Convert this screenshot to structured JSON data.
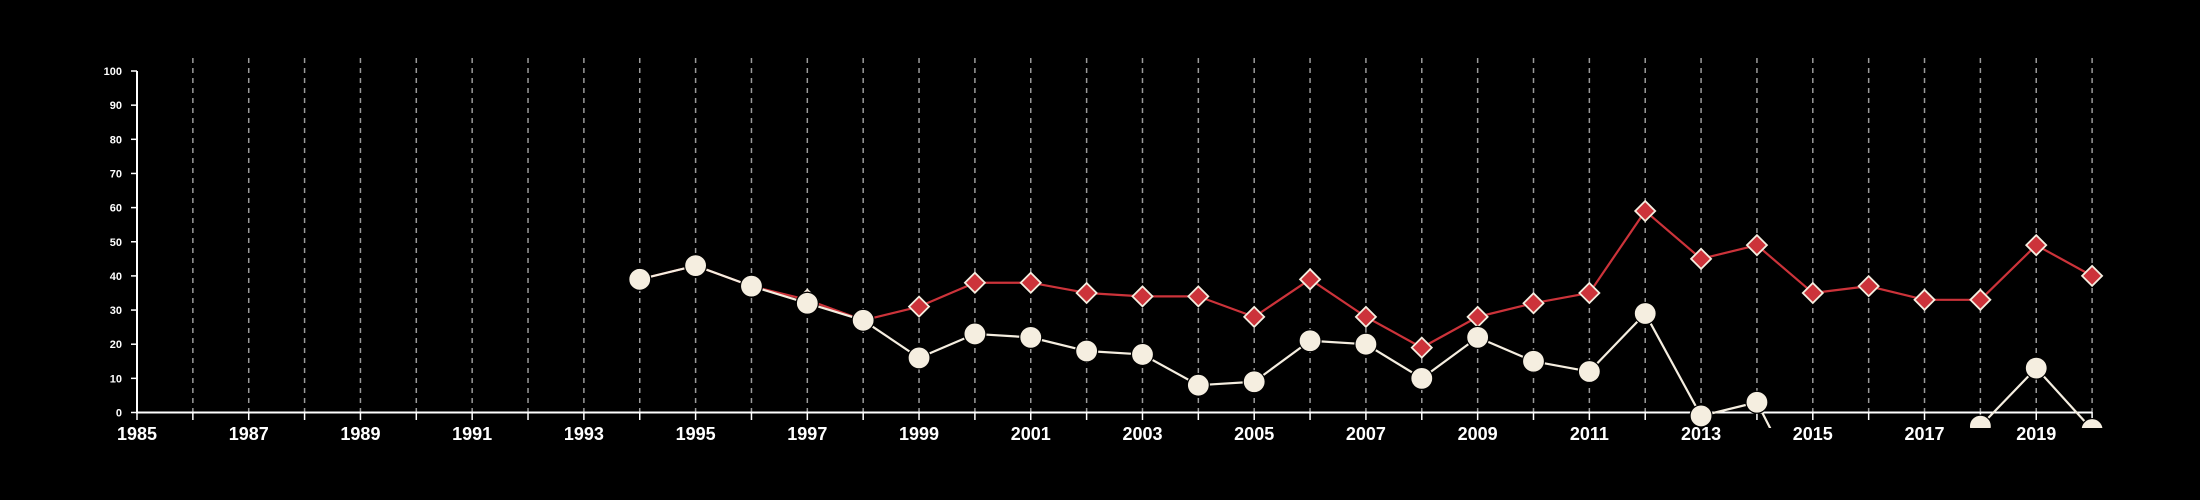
{
  "chart_data": {
    "type": "line",
    "x_range": [
      1985,
      2020
    ],
    "x_tick_labels": [
      "1985",
      "1987",
      "1989",
      "1991",
      "1993",
      "1995",
      "1997",
      "1999",
      "2001",
      "2003",
      "2005",
      "2007",
      "2009",
      "2011",
      "2013",
      "2015",
      "2017",
      "2019"
    ],
    "ylim": [
      0,
      100
    ],
    "y_tick_labels": [
      "0",
      "10",
      "20",
      "30",
      "40",
      "50",
      "60",
      "70",
      "80",
      "90",
      "100"
    ],
    "grid": "vertical dashed lines at every year",
    "legend": "none",
    "series": [
      {
        "color": "#cc333a",
        "marker": "diamond",
        "points": [
          {
            "x": 1994,
            "y": 39
          },
          {
            "x": 1995,
            "y": 43
          },
          {
            "x": 1996,
            "y": 37
          },
          {
            "x": 1997,
            "y": 33
          },
          {
            "x": 1998,
            "y": 27
          },
          {
            "x": 1999,
            "y": 31
          },
          {
            "x": 2000,
            "y": 38
          },
          {
            "x": 2001,
            "y": 38
          },
          {
            "x": 2002,
            "y": 35
          },
          {
            "x": 2003,
            "y": 34
          },
          {
            "x": 2004,
            "y": 34
          },
          {
            "x": 2005,
            "y": 28
          },
          {
            "x": 2006,
            "y": 39
          },
          {
            "x": 2007,
            "y": 28
          },
          {
            "x": 2008,
            "y": 19
          },
          {
            "x": 2009,
            "y": 28
          },
          {
            "x": 2010,
            "y": 32
          },
          {
            "x": 2011,
            "y": 35
          },
          {
            "x": 2012,
            "y": 59
          },
          {
            "x": 2013,
            "y": 45
          },
          {
            "x": 2014,
            "y": 49
          },
          {
            "x": 2015,
            "y": 35
          },
          {
            "x": 2016,
            "y": 37
          },
          {
            "x": 2017,
            "y": 33
          },
          {
            "x": 2018,
            "y": 33
          },
          {
            "x": 2019,
            "y": 49
          },
          {
            "x": 2020,
            "y": 40
          }
        ]
      },
      {
        "color": "#f5eee0",
        "marker": "circle",
        "points": [
          {
            "x": 1994,
            "y": 39
          },
          {
            "x": 1995,
            "y": 43
          },
          {
            "x": 1996,
            "y": 37
          },
          {
            "x": 1997,
            "y": 32
          },
          {
            "x": 1998,
            "y": 27
          },
          {
            "x": 1999,
            "y": 16
          },
          {
            "x": 2000,
            "y": 23
          },
          {
            "x": 2001,
            "y": 22
          },
          {
            "x": 2002,
            "y": 18
          },
          {
            "x": 2003,
            "y": 17
          },
          {
            "x": 2004,
            "y": 8
          },
          {
            "x": 2005,
            "y": 9
          },
          {
            "x": 2006,
            "y": 21
          },
          {
            "x": 2007,
            "y": 20
          },
          {
            "x": 2008,
            "y": 10
          },
          {
            "x": 2009,
            "y": 22
          },
          {
            "x": 2010,
            "y": 15
          },
          {
            "x": 2011,
            "y": 12
          },
          {
            "x": 2012,
            "y": 29
          },
          {
            "x": 2013,
            "y": -1
          },
          {
            "x": 2014,
            "y": 3
          },
          {
            "x": 2014.25,
            "y": -5
          },
          null,
          {
            "x": 2018,
            "y": -4
          },
          {
            "x": 2019,
            "y": 13
          },
          {
            "x": 2020,
            "y": -5
          }
        ]
      }
    ]
  }
}
